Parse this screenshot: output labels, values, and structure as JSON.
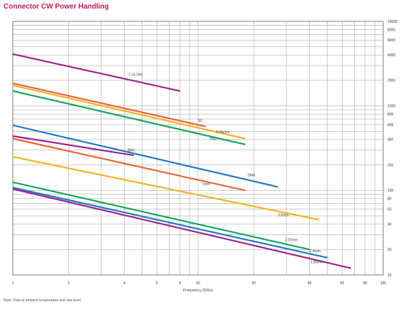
{
  "chart_data": {
    "type": "line",
    "title": "Connector CW Power Handling",
    "xlabel": "Frequency (GHz)",
    "ylabel": "",
    "x_scale": "log",
    "y_scale": "log",
    "xlim": [
      1,
      100
    ],
    "ylim": [
      10,
      10000
    ],
    "grid": true,
    "x_ticks": [
      "1",
      "2",
      "4",
      "6",
      "8",
      "10",
      "20",
      "40",
      "60",
      "80",
      "100"
    ],
    "x_tick_values": [
      1,
      2,
      4,
      6,
      8,
      10,
      20,
      40,
      60,
      80,
      100
    ],
    "y_ticks": [
      "10000",
      "8000",
      "6000",
      "4000",
      "2000",
      "1000",
      "800",
      "600",
      "400",
      "200",
      "100",
      "80",
      "60",
      "40",
      "20",
      "10"
    ],
    "y_tick_values": [
      10000,
      8000,
      6000,
      4000,
      2000,
      1000,
      800,
      600,
      400,
      200,
      100,
      80,
      60,
      40,
      20,
      10
    ],
    "series": [
      {
        "name": "7-16 DIN",
        "color": "#a0248e",
        "x": [
          1,
          8
        ],
        "y": [
          4100,
          1500
        ]
      },
      {
        "name": "SC",
        "color": "#e8663a",
        "x": [
          1,
          11
        ],
        "y": [
          1850,
          570
        ]
      },
      {
        "name": "N Series",
        "color": "#f5b326",
        "x": [
          1,
          18
        ],
        "y": [
          1750,
          410
        ]
      },
      {
        "name": "TNC",
        "color": "#1aa55a",
        "x": [
          1,
          18
        ],
        "y": [
          1500,
          350
        ]
      },
      {
        "name": "SMA",
        "color": "#1e7cc2",
        "x": [
          1,
          27
        ],
        "y": [
          590,
          110
        ]
      },
      {
        "name": "BNC",
        "color": "#a0248e",
        "x": [
          1,
          4.5
        ],
        "y": [
          440,
          260
        ]
      },
      {
        "name": "7mm",
        "color": "#e8663a",
        "x": [
          1,
          18
        ],
        "y": [
          410,
          100
        ]
      },
      {
        "name": "3.5mm",
        "color": "#f5b326",
        "x": [
          1,
          45
        ],
        "y": [
          250,
          45
        ]
      },
      {
        "name": "2.92mm",
        "color": "#1aa55a",
        "x": [
          1,
          40
        ],
        "y": [
          125,
          20
        ]
      },
      {
        "name": "2.4mm",
        "color": "#1e7cc2",
        "x": [
          1,
          50
        ],
        "y": [
          108,
          16
        ]
      },
      {
        "name": "1.85mm",
        "color": "#a0248e",
        "x": [
          1,
          67
        ],
        "y": [
          104,
          12
        ]
      }
    ]
  },
  "note": "Note: Data at ambient temperature and sea level."
}
